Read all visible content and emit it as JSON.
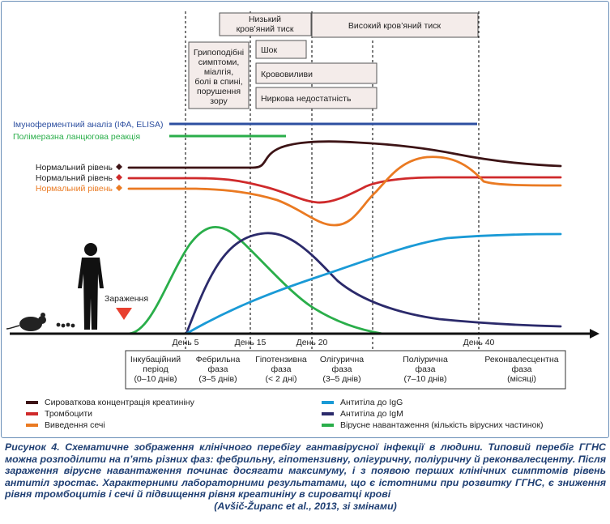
{
  "top_boxes": {
    "low_bp": "Низький кров’яний тиск",
    "high_bp": "Високий кров’яний тиск",
    "flu": [
      "Грипоподібні",
      "симптоми,",
      "міалгія,",
      "болі в спині,",
      "порушення",
      "зору"
    ],
    "shock": "Шок",
    "hemorrhage": "Крововиливи",
    "renal": "Ниркова недостатність"
  },
  "tests": {
    "elisa": "Імуноферментний аналіз (ІФА, ELISA)",
    "pcr": "Полімеразна ланцюгова реакція"
  },
  "normal_levels": [
    "Нормальний рівень",
    "Нормальний рівень",
    "Нормальний рівень"
  ],
  "infection_label": "Зараження",
  "days": [
    "День 5",
    "День 15",
    "День 20",
    "День 40"
  ],
  "phases": [
    [
      "Інкубаційний",
      "період",
      "(0–10 днів)"
    ],
    [
      "Фебрильна",
      "фаза",
      "(3–5 днів)"
    ],
    [
      "Гіпотензивна",
      "фаза",
      "(< 2 дні)"
    ],
    [
      "Олігурична",
      "фаза",
      "(3–5 днів)"
    ],
    [
      "Поліурична",
      "фаза",
      "(7–10 днів)"
    ],
    [
      "Реконвалесцентна",
      "фаза",
      "(місяці)"
    ]
  ],
  "legend": [
    "Сироваткова концентрація креатиніну",
    "Тромбоцити",
    "Виведення сечі",
    "Антитіла до IgG",
    "Антитіла до IgM",
    "Вірусне навантаження (кількість вірусних частинок)"
  ],
  "caption": "Рисунок 4. Схематичне зображення клінічного перебігу гантавірусної інфекції в людини. Типовий перебіг ГГНС можна розподілити на п’ять різних фаз: фебрильну, гіпотензивну, олігуричну, поліуричну й реконвалесценту. Після зараження вірусне навантаження починає досягати максимуму, і з появою перших клінічних симптомів рівень антитіл зростає. Характерними лабораторними результатами, що є істотними при розвитку ГГНС, є зниження рівня тромбоцитів і сечі й підвищення рівня креатиніну в сироватці крові",
  "source": "(Avšič-Županc et al., 2013, зі змінами)",
  "colors": {
    "creatinine": "#3d1416",
    "platelets": "#cf2a2b",
    "urine": "#ea7a22",
    "igg": "#1a9ad6",
    "igm": "#2b2a6b",
    "viral": "#2aae4a",
    "elisa": "#2d4fa0",
    "pcr": "#2aae4a",
    "box_fill": "#f4ecea"
  }
}
